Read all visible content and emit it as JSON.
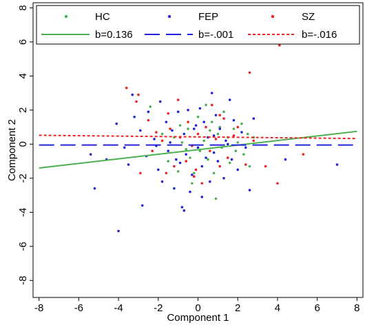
{
  "chart_data": {
    "type": "scatter",
    "xlabel": "Component 1",
    "ylabel": "Component 2",
    "xlim": [
      -8.3,
      8.3
    ],
    "ylim": [
      -9.0,
      8.3
    ],
    "xticks": [
      "-8",
      "-6",
      "-4",
      "-2",
      "0",
      "2",
      "4",
      "6",
      "8"
    ],
    "yticks": [
      "-8",
      "-6",
      "-4",
      "-2",
      "0",
      "2",
      "4",
      "6",
      "8"
    ],
    "grid": false,
    "legend": {
      "placement": "top",
      "rows": [
        [
          {
            "label": "HC",
            "kind": "marker",
            "series": "hc"
          },
          {
            "label": "FEP",
            "kind": "marker",
            "series": "fep"
          },
          {
            "label": "SZ",
            "kind": "marker",
            "series": "sz"
          }
        ],
        [
          {
            "label": "b=0.136",
            "kind": "line",
            "series": "hc"
          },
          {
            "label": "b=-.001",
            "kind": "line",
            "series": "fep"
          },
          {
            "label": "b=-.016",
            "kind": "line",
            "series": "sz"
          }
        ]
      ]
    },
    "colors": {
      "hc": "#4caf50",
      "fep": "#2222dd",
      "sz": "#ee2222"
    },
    "fit_lines": [
      {
        "series": "hc",
        "x": [
          -8,
          8
        ],
        "y": [
          -1.4,
          0.75
        ],
        "style": "solid"
      },
      {
        "series": "fep",
        "x": [
          -8,
          8
        ],
        "y": [
          -0.05,
          -0.05
        ],
        "style": "dashed"
      },
      {
        "series": "sz",
        "x": [
          -8,
          8
        ],
        "y": [
          0.52,
          0.33
        ],
        "style": "dotted"
      }
    ],
    "series": [
      {
        "name": "HC",
        "key": "hc",
        "points": [
          [
            -2.4,
            2.2
          ],
          [
            -1.8,
            0.6
          ],
          [
            -1.5,
            -1.0
          ],
          [
            -1.2,
            0.4
          ],
          [
            -0.9,
            1.1
          ],
          [
            -0.6,
            -0.3
          ],
          [
            -0.5,
            0.9
          ],
          [
            -0.2,
            -1.7
          ],
          [
            0.0,
            1.6
          ],
          [
            0.1,
            -0.4
          ],
          [
            0.3,
            0.2
          ],
          [
            0.5,
            -0.9
          ],
          [
            0.7,
            1.3
          ],
          [
            0.8,
            -1.7
          ],
          [
            1.0,
            0.6
          ],
          [
            1.2,
            -0.2
          ],
          [
            1.3,
            1.9
          ],
          [
            1.5,
            0.4
          ],
          [
            1.6,
            -1.1
          ],
          [
            1.8,
            0.9
          ],
          [
            2.0,
            0.1
          ],
          [
            2.2,
            1.2
          ],
          [
            2.3,
            -0.6
          ],
          [
            2.6,
            -1.3
          ],
          [
            2.8,
            0.4
          ],
          [
            0.9,
            -3.2
          ],
          [
            -0.3,
            -2.3
          ],
          [
            0.4,
            2.3
          ],
          [
            -1.0,
            -1.6
          ],
          [
            1.1,
            1.0
          ],
          [
            -0.8,
            0.1
          ],
          [
            1.9,
            -0.4
          ],
          [
            0.6,
            0.8
          ],
          [
            -0.4,
            -0.8
          ],
          [
            2.5,
            0.6
          ]
        ]
      },
      {
        "name": "FEP",
        "key": "fep",
        "points": [
          [
            -5.4,
            -0.6
          ],
          [
            -5.2,
            -2.6
          ],
          [
            -4.6,
            -0.9
          ],
          [
            -4.1,
            1.2
          ],
          [
            -4.0,
            -5.1
          ],
          [
            -3.7,
            -0.2
          ],
          [
            -3.5,
            -1.2
          ],
          [
            -3.3,
            2.9
          ],
          [
            -3.2,
            1.6
          ],
          [
            -2.9,
            0.8
          ],
          [
            -2.8,
            -3.6
          ],
          [
            -2.6,
            -0.7
          ],
          [
            -2.5,
            1.9
          ],
          [
            -2.2,
            0.3
          ],
          [
            -2.0,
            -1.5
          ],
          [
            -1.9,
            2.5
          ],
          [
            -1.8,
            -2.2
          ],
          [
            -1.6,
            1.3
          ],
          [
            -1.5,
            -0.4
          ],
          [
            -1.3,
            0.8
          ],
          [
            -1.2,
            -2.6
          ],
          [
            -1.0,
            1.9
          ],
          [
            -0.9,
            -1.1
          ],
          [
            -0.8,
            -3.7
          ],
          [
            -0.7,
            0.6
          ],
          [
            -0.6,
            -0.6
          ],
          [
            -0.5,
            2.0
          ],
          [
            -0.4,
            -2.8
          ],
          [
            -0.3,
            -1.8
          ],
          [
            -0.2,
            0.9
          ],
          [
            0.0,
            -0.2
          ],
          [
            0.1,
            2.1
          ],
          [
            0.2,
            -1.3
          ],
          [
            0.3,
            1.3
          ],
          [
            0.4,
            -0.8
          ],
          [
            0.5,
            0.4
          ],
          [
            0.6,
            -2.2
          ],
          [
            0.7,
            3.0
          ],
          [
            0.8,
            -0.5
          ],
          [
            0.9,
            1.7
          ],
          [
            1.0,
            -1.0
          ],
          [
            1.1,
            0.9
          ],
          [
            1.3,
            -2.0
          ],
          [
            1.4,
            0.2
          ],
          [
            1.6,
            2.6
          ],
          [
            1.7,
            -0.9
          ],
          [
            1.8,
            1.4
          ],
          [
            2.0,
            -1.5
          ],
          [
            2.2,
            0.7
          ],
          [
            2.6,
            -2.7
          ],
          [
            2.8,
            1.5
          ],
          [
            4.4,
            -0.9
          ],
          [
            7.0,
            -1.2
          ],
          [
            -0.7,
            -3.9
          ],
          [
            -2.1,
            -0.1
          ],
          [
            0.2,
            -3.1
          ],
          [
            -1.4,
            0.1
          ],
          [
            1.5,
            0.0
          ],
          [
            -0.1,
            1.1
          ],
          [
            2.4,
            -0.2
          ],
          [
            -1.1,
            -0.9
          ],
          [
            0.8,
            0.5
          ]
        ]
      },
      {
        "name": "SZ",
        "key": "sz",
        "points": [
          [
            -3.6,
            3.3
          ],
          [
            -3.1,
            2.5
          ],
          [
            -3.0,
            2.9
          ],
          [
            -2.9,
            -1.7
          ],
          [
            -2.5,
            1.4
          ],
          [
            -2.3,
            -0.4
          ],
          [
            -2.1,
            0.7
          ],
          [
            -1.8,
            0.2
          ],
          [
            -1.6,
            -1.7
          ],
          [
            -1.5,
            1.8
          ],
          [
            -1.4,
            0.9
          ],
          [
            -1.2,
            -1.3
          ],
          [
            -1.0,
            2.6
          ],
          [
            -0.9,
            0.4
          ],
          [
            -0.6,
            -1.0
          ],
          [
            -0.5,
            1.3
          ],
          [
            -0.3,
            -0.1
          ],
          [
            -0.1,
            -1.5
          ],
          [
            0.0,
            0.6
          ],
          [
            0.2,
            -2.3
          ],
          [
            0.4,
            1.0
          ],
          [
            0.6,
            -0.4
          ],
          [
            0.7,
            2.3
          ],
          [
            0.9,
            0.3
          ],
          [
            1.1,
            -1.3
          ],
          [
            1.3,
            1.5
          ],
          [
            1.5,
            -0.8
          ],
          [
            1.8,
            0.5
          ],
          [
            2.0,
            1.0
          ],
          [
            2.4,
            -1.2
          ],
          [
            2.6,
            4.2
          ],
          [
            2.8,
            0.2
          ],
          [
            3.4,
            -1.3
          ],
          [
            4.0,
            -2.3
          ],
          [
            4.1,
            5.8
          ],
          [
            5.3,
            -0.6
          ],
          [
            -0.2,
            -1.9
          ],
          [
            1.1,
            1.7
          ]
        ]
      }
    ]
  }
}
